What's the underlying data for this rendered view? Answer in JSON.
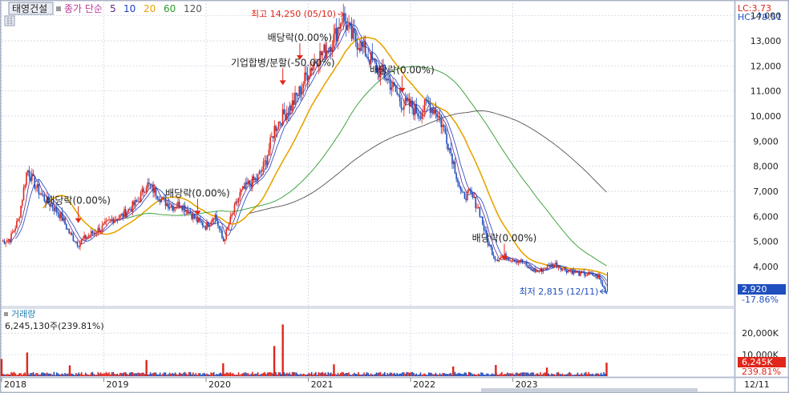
{
  "header": {
    "stock_name": "태영건설",
    "legend_title": "종가 단순",
    "lc_label": "LC:3.73",
    "hc_label": "HC:-79.51"
  },
  "colors": {
    "up": "#e0261b",
    "down": "#1f4fbf",
    "ma5": "#5b2a86",
    "ma10": "#1f3fbf",
    "ma20": "#e8a400",
    "ma60": "#2e9a2e",
    "ma120": "#555555",
    "grid": "#c8cfe0",
    "current_price_bg": "#1f4fbf",
    "current_volume_bg": "#e0261b"
  },
  "chart_data": [
    {
      "type": "candlestick",
      "name": "price",
      "ylim": [
        2500,
        14500
      ],
      "yticks": [
        4000,
        5000,
        6000,
        7000,
        8000,
        9000,
        10000,
        11000,
        12000,
        13000,
        14000
      ],
      "ytick_labels": [
        "4,000",
        "5,000",
        "6,000",
        "7,000",
        "8,000",
        "9,000",
        "10,000",
        "11,000",
        "12,000",
        "13,000",
        "14,000"
      ],
      "x_labels": [
        "2018",
        "2019",
        "2020",
        "2021",
        "2022",
        "2023",
        "12/11"
      ],
      "moving_averages": [
        {
          "period": "5",
          "label": "5",
          "color": "#5b2a86"
        },
        {
          "period": "10",
          "label": "10",
          "color": "#1f3fbf"
        },
        {
          "period": "20",
          "label": "20",
          "color": "#e8a400"
        },
        {
          "period": "60",
          "label": "60",
          "color": "#2e9a2e"
        },
        {
          "period": "120",
          "label": "120",
          "color": "#555555"
        }
      ],
      "price_path": [
        [
          "2018-01",
          5000
        ],
        [
          "2018-02",
          5100
        ],
        [
          "2018-03",
          5900
        ],
        [
          "2018-04",
          7900
        ],
        [
          "2018-05",
          7200
        ],
        [
          "2018-06",
          6700
        ],
        [
          "2018-07",
          6400
        ],
        [
          "2018-08",
          6000
        ],
        [
          "2018-09",
          5300
        ],
        [
          "2018-10",
          4900
        ],
        [
          "2018-11",
          5200
        ],
        [
          "2018-12",
          5400
        ],
        [
          "2019-01",
          5600
        ],
        [
          "2019-02",
          5900
        ],
        [
          "2019-03",
          6000
        ],
        [
          "2019-04",
          6300
        ],
        [
          "2019-05",
          6600
        ],
        [
          "2019-06",
          7300
        ],
        [
          "2019-07",
          7000
        ],
        [
          "2019-08",
          6600
        ],
        [
          "2019-09",
          6400
        ],
        [
          "2019-10",
          6500
        ],
        [
          "2019-11",
          6200
        ],
        [
          "2019-12",
          5800
        ],
        [
          "2020-01",
          5600
        ],
        [
          "2020-02",
          6100
        ],
        [
          "2020-03",
          5000
        ],
        [
          "2020-04",
          6000
        ],
        [
          "2020-05",
          6900
        ],
        [
          "2020-06",
          7300
        ],
        [
          "2020-07",
          7500
        ],
        [
          "2020-08",
          8200
        ],
        [
          "2020-09",
          9500
        ],
        [
          "2020-10",
          10000
        ],
        [
          "2020-11",
          10400
        ],
        [
          "2020-12",
          11000
        ],
        [
          "2021-01",
          11800
        ],
        [
          "2021-02",
          12300
        ],
        [
          "2021-03",
          12600
        ],
        [
          "2021-04",
          13100
        ],
        [
          "2021-05",
          14000
        ],
        [
          "2021-06",
          13200
        ],
        [
          "2021-07",
          12900
        ],
        [
          "2021-08",
          12400
        ],
        [
          "2021-09",
          11900
        ],
        [
          "2021-10",
          11600
        ],
        [
          "2021-11",
          11100
        ],
        [
          "2021-12",
          10500
        ],
        [
          "2022-01",
          10400
        ],
        [
          "2022-02",
          10100
        ],
        [
          "2022-03",
          10500
        ],
        [
          "2022-04",
          10200
        ],
        [
          "2022-05",
          9400
        ],
        [
          "2022-06",
          8200
        ],
        [
          "2022-07",
          6800
        ],
        [
          "2022-08",
          6900
        ],
        [
          "2022-09",
          6300
        ],
        [
          "2022-10",
          5000
        ],
        [
          "2022-11",
          4300
        ],
        [
          "2022-12",
          4400
        ],
        [
          "2023-01",
          4300
        ],
        [
          "2023-02",
          4200
        ],
        [
          "2023-03",
          3900
        ],
        [
          "2023-04",
          3800
        ],
        [
          "2023-05",
          4000
        ],
        [
          "2023-06",
          4100
        ],
        [
          "2023-07",
          3900
        ],
        [
          "2023-08",
          3800
        ],
        [
          "2023-09",
          3700
        ],
        [
          "2023-10",
          3700
        ],
        [
          "2023-11",
          3600
        ],
        [
          "2023-12",
          2920
        ]
      ],
      "annotations": [
        {
          "text": "최고 14,250 (05/10)",
          "date": "2021-05",
          "value": 14250,
          "kind": "high"
        },
        {
          "text": "최저 2,815 (12/11)",
          "date": "2023-12",
          "value": 2815,
          "kind": "low"
        },
        {
          "text": "배당락(0.00%)",
          "date": "2018-10",
          "value": 6500,
          "kind": "event"
        },
        {
          "text": "배당락(0.00%)",
          "date": "2019-12",
          "value": 6800,
          "kind": "event"
        },
        {
          "text": "기업합병/분할(-50.00%)",
          "date": "2020-10",
          "value": 12000,
          "kind": "event"
        },
        {
          "text": "배당락(0.00%)",
          "date": "2020-12",
          "value": 13000,
          "kind": "event"
        },
        {
          "text": "배당락(0.00%)",
          "date": "2021-12",
          "value": 11700,
          "kind": "event"
        },
        {
          "text": "배당락(0.00%)",
          "date": "2022-12",
          "value": 5000,
          "kind": "event"
        }
      ],
      "current": {
        "price_label": "2,920",
        "change_label": "-17.86%"
      }
    },
    {
      "type": "bar",
      "name": "volume",
      "title": "거래량",
      "summary": "6,245,130주(239.81%)",
      "ylim": [
        0,
        26000
      ],
      "yticks": [
        10000,
        20000
      ],
      "ytick_labels": [
        "10,000K",
        "20,000K"
      ],
      "spikes": [
        [
          "2018-01",
          8000
        ],
        [
          "2018-04",
          11000
        ],
        [
          "2018-09",
          5000
        ],
        [
          "2019-06",
          7500
        ],
        [
          "2020-03",
          6000
        ],
        [
          "2020-09",
          14000
        ],
        [
          "2020-10",
          24000
        ],
        [
          "2021-04",
          5500
        ],
        [
          "2022-06",
          4500
        ],
        [
          "2022-11",
          5200
        ],
        [
          "2023-05",
          4000
        ],
        [
          "2023-12",
          6245
        ]
      ],
      "current": {
        "volume_label": "6,245K",
        "change_label": "239.81%"
      }
    }
  ]
}
